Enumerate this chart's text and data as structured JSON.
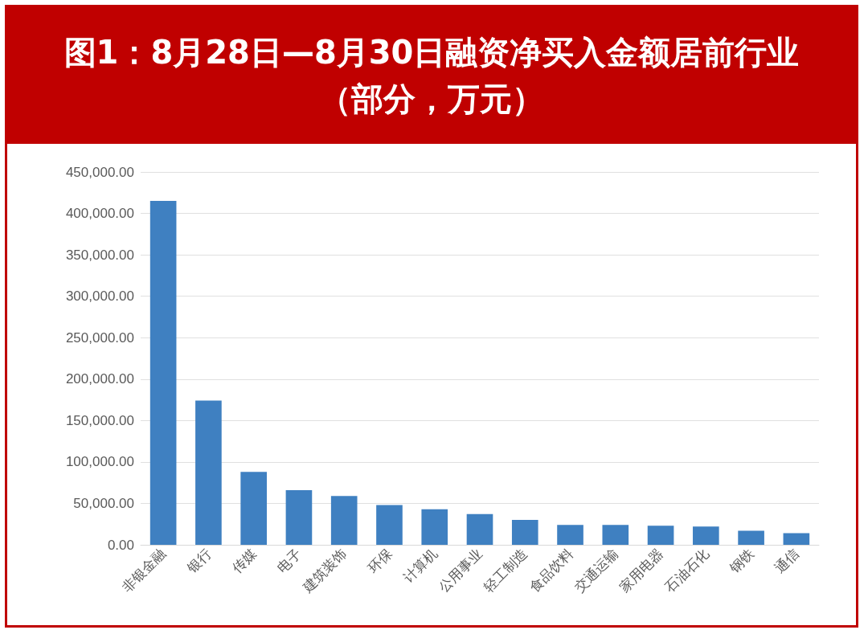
{
  "chart_data": {
    "type": "bar",
    "title": "图1：8月28日—8月30日融资净买入金额居前行业（部分，万元）",
    "categories": [
      "非银金融",
      "银行",
      "传媒",
      "电子",
      "建筑装饰",
      "环保",
      "计算机",
      "公用事业",
      "轻工制造",
      "食品饮料",
      "交通运输",
      "家用电器",
      "石油石化",
      "钢铁",
      "通信"
    ],
    "values": [
      415000,
      174000,
      88000,
      66000,
      59000,
      48000,
      43000,
      37000,
      30000,
      24000,
      24000,
      23000,
      22000,
      17000,
      14000
    ],
    "color": "#3f80c1",
    "ylim": [
      0,
      450000
    ],
    "yticks": [
      {
        "value": 0,
        "label": "0.00"
      },
      {
        "value": 50000,
        "label": "50,000.00"
      },
      {
        "value": 100000,
        "label": "100,000.00"
      },
      {
        "value": 150000,
        "label": "150,000.00"
      },
      {
        "value": 200000,
        "label": "200,000.00"
      },
      {
        "value": 250000,
        "label": "250,000.00"
      },
      {
        "value": 300000,
        "label": "300,000.00"
      },
      {
        "value": 350000,
        "label": "350,000.00"
      },
      {
        "value": 400000,
        "label": "400,000.00"
      },
      {
        "value": 450000,
        "label": "450,000.00"
      }
    ],
    "grid": "y"
  }
}
